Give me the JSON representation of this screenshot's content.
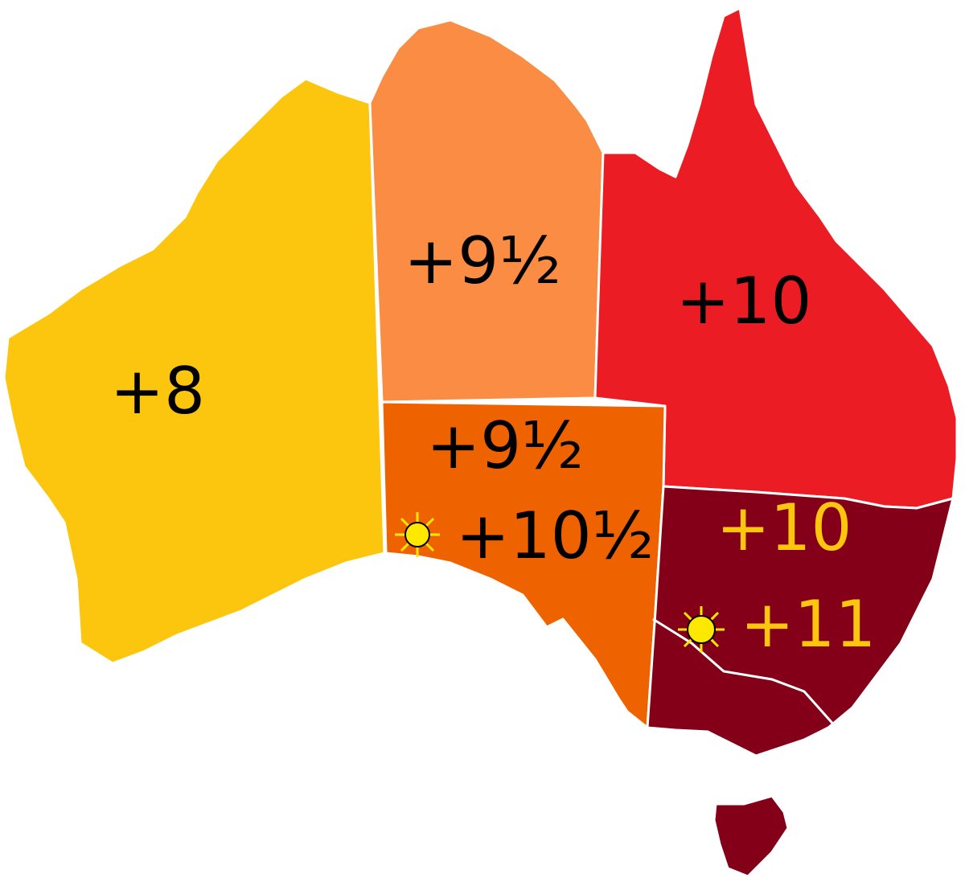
{
  "regions": [
    {
      "label": "+8"
    },
    {
      "label": "+9½"
    },
    {
      "label": "+10"
    },
    {
      "label": "+9½",
      "dst_label": "+10½"
    },
    {
      "label": "+10",
      "dst_label": "+11"
    }
  ]
}
